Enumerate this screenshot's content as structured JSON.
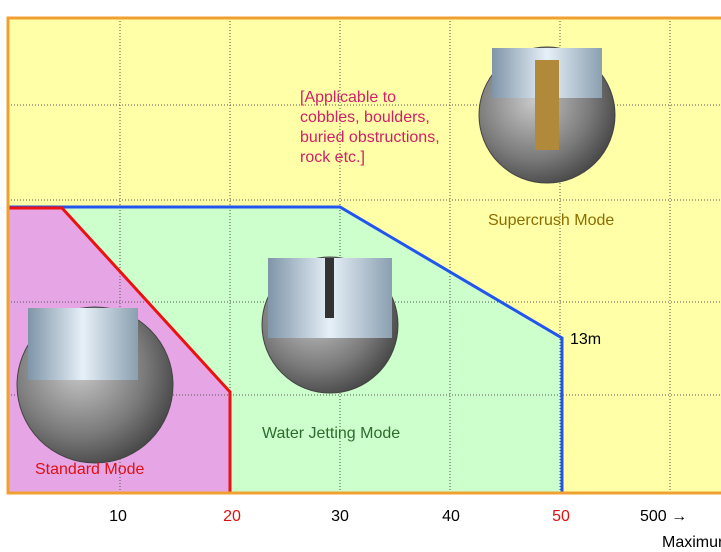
{
  "annotation": {
    "lines": [
      "[Applicable to",
      "cobbles, boulders,",
      "buried obstructions,",
      "rock etc.]"
    ]
  },
  "regions": [
    {
      "label": "Standard Mode"
    },
    {
      "label": "Water Jetting Mode"
    },
    {
      "label": "Supercrush Mode"
    }
  ],
  "boundary_label": "13m",
  "x_axis": {
    "ticks": [
      "10",
      "20",
      "30",
      "40",
      "50",
      "500 →"
    ],
    "label": "Maximur"
  }
}
